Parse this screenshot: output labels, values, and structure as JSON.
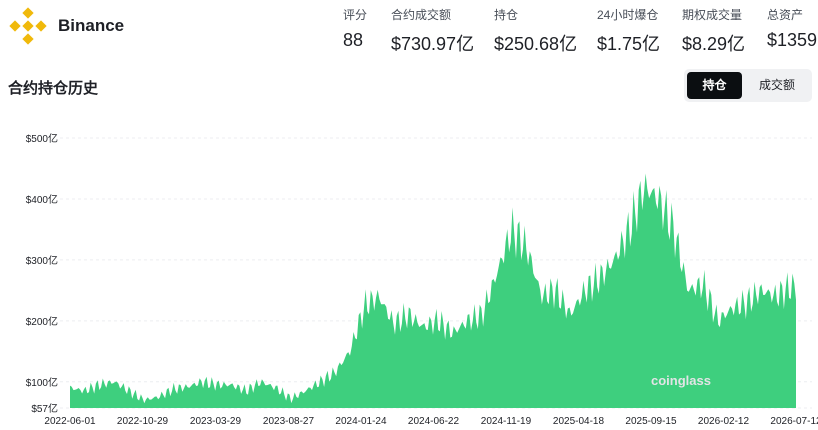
{
  "header": {
    "brand": "Binance",
    "stats": [
      {
        "label": "评分",
        "value": "88"
      },
      {
        "label": "合约成交额",
        "value": "$730.97亿"
      },
      {
        "label": "持仓",
        "value": "$250.68亿"
      },
      {
        "label": "24小时爆仓",
        "value": "$1.75亿"
      },
      {
        "label": "期权成交量",
        "value": "$8.29亿"
      },
      {
        "label": "总资产",
        "value": "$1359"
      }
    ]
  },
  "section": {
    "title": "合约持仓历史"
  },
  "toggle": {
    "active": "持仓",
    "inactive": "成交额"
  },
  "watermark": "coinglass",
  "colors": {
    "area": "#3ecf7e",
    "accent": "#f0b90b",
    "toggle_active": "#0b0e11"
  },
  "chart_data": {
    "type": "area",
    "y_tick_labels": [
      "$57亿",
      "$100亿",
      "$200亿",
      "$300亿",
      "$400亿",
      "$500亿"
    ],
    "y_ticks": [
      57,
      100,
      200,
      300,
      400,
      500
    ],
    "x_tick_labels": [
      "2022-06-01",
      "2022-10-29",
      "2023-03-29",
      "2023-08-27",
      "2024-01-24",
      "2024-06-22",
      "2024-11-19",
      "2025-04-18",
      "2025-09-15",
      "2026-02-12",
      "2026-07-12"
    ],
    "ylim": [
      57,
      520
    ],
    "x": [
      "2022-06-01",
      "2022-07-01",
      "2022-08-01",
      "2022-09-01",
      "2022-10-01",
      "2022-11-01",
      "2022-12-01",
      "2023-01-01",
      "2023-02-01",
      "2023-03-01",
      "2023-04-01",
      "2023-05-01",
      "2023-06-01",
      "2023-07-01",
      "2023-08-01",
      "2023-09-01",
      "2023-10-01",
      "2023-11-01",
      "2023-12-01",
      "2024-01-01",
      "2024-02-01",
      "2024-03-01",
      "2024-04-01",
      "2024-05-01",
      "2024-06-01",
      "2024-07-01",
      "2024-08-01",
      "2024-09-01",
      "2024-10-01",
      "2024-11-01",
      "2024-12-01",
      "2025-01-01",
      "2025-02-01",
      "2025-03-01",
      "2025-04-01",
      "2025-05-01",
      "2025-06-01",
      "2025-07-01",
      "2025-08-01",
      "2025-09-01",
      "2025-10-01",
      "2025-11-01",
      "2025-12-01",
      "2026-01-01",
      "2026-02-01",
      "2026-03-01",
      "2026-04-01",
      "2026-05-01",
      "2026-06-01",
      "2026-07-01"
    ],
    "values": [
      90,
      85,
      95,
      100,
      85,
      70,
      75,
      88,
      92,
      100,
      95,
      95,
      85,
      100,
      90,
      72,
      85,
      100,
      115,
      150,
      225,
      240,
      195,
      210,
      190,
      200,
      180,
      200,
      210,
      280,
      350,
      320,
      240,
      250,
      210,
      250,
      270,
      300,
      350,
      420,
      400,
      350,
      250,
      260,
      200,
      220,
      230,
      250,
      240,
      255
    ]
  }
}
